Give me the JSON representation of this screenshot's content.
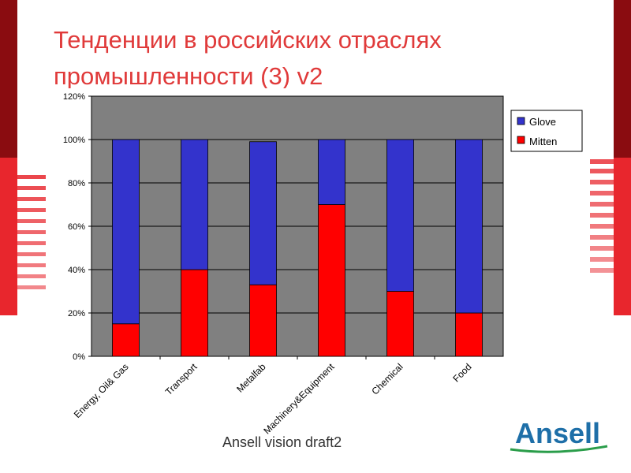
{
  "slide": {
    "title": "Тенденции в российских отраслях промышленности (3) v2",
    "footer": "Ansell vision draft2",
    "logo_text": "Ansell"
  },
  "colors": {
    "title": "#e03a3a",
    "glove": "#3333cc",
    "mitten": "#ff0000",
    "plot_bg": "#808080",
    "accent_red": "#e8262d",
    "accent_dark": "#8a0c10",
    "logo_blue": "#1e6fa8",
    "logo_green": "#2a9d4a"
  },
  "chart_data": {
    "type": "bar",
    "stacked": true,
    "categories": [
      "Energy, Oil& Gas",
      "Transport",
      "Metalfab",
      "Machinery&Equipment",
      "Chemical",
      "Food"
    ],
    "series": [
      {
        "name": "Mitten",
        "values": [
          15,
          40,
          33,
          70,
          30,
          20
        ]
      },
      {
        "name": "Glove",
        "values": [
          85,
          60,
          66,
          30,
          70,
          80
        ]
      }
    ],
    "ylim": [
      0,
      120
    ],
    "yticks": [
      "0%",
      "20%",
      "40%",
      "60%",
      "80%",
      "100%",
      "120%"
    ],
    "ytick_values": [
      0,
      20,
      40,
      60,
      80,
      100,
      120
    ],
    "legend": [
      "Glove",
      "Mitten"
    ],
    "legend_position": "right",
    "grid": true
  }
}
